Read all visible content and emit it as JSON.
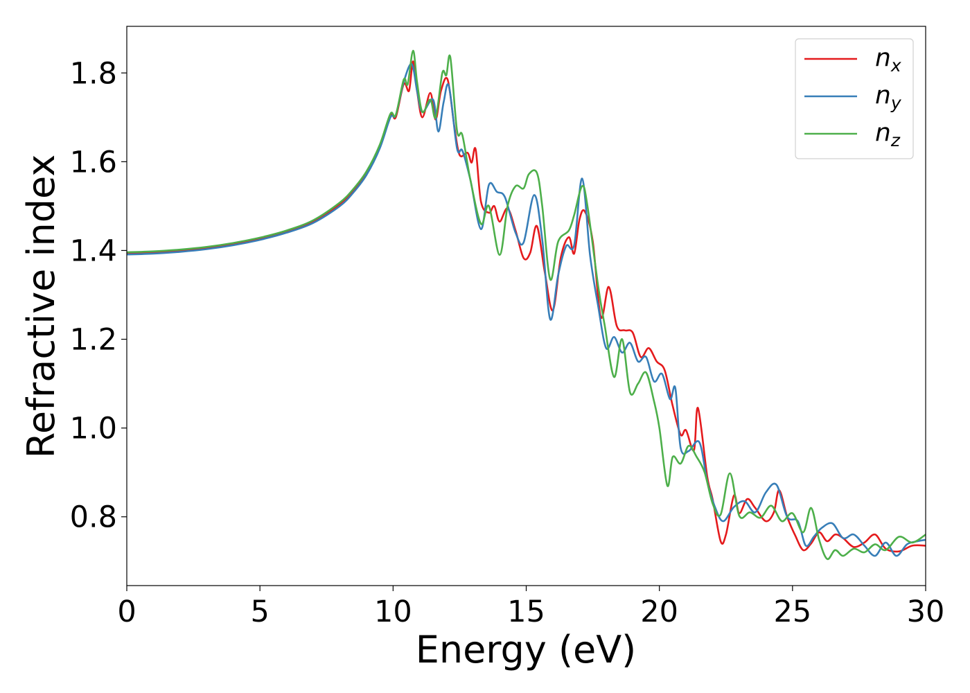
{
  "chart_data": {
    "type": "line",
    "xlabel": "Energy (eV)",
    "ylabel": "Refractive index",
    "xlim": [
      0,
      30
    ],
    "ylim": [
      0.645,
      1.905
    ],
    "xticks": [
      0,
      5,
      10,
      15,
      20,
      25,
      30
    ],
    "xtick_labels": [
      "0",
      "5",
      "10",
      "15",
      "20",
      "25",
      "30"
    ],
    "yticks": [
      0.8,
      1.0,
      1.2,
      1.4,
      1.6,
      1.8
    ],
    "ytick_labels": [
      "0.8",
      "1.0",
      "1.2",
      "1.4",
      "1.6",
      "1.8"
    ],
    "grid": false,
    "legend_position": "top-right",
    "series": [
      {
        "name": "n_x",
        "label_base": "n",
        "label_sub": "x",
        "color": "#e41a1c",
        "points": [
          [
            0,
            1.393
          ],
          [
            1,
            1.395
          ],
          [
            2,
            1.399
          ],
          [
            3,
            1.405
          ],
          [
            4,
            1.414
          ],
          [
            5,
            1.426
          ],
          [
            6,
            1.442
          ],
          [
            7,
            1.465
          ],
          [
            8,
            1.505
          ],
          [
            8.5,
            1.535
          ],
          [
            9,
            1.575
          ],
          [
            9.5,
            1.635
          ],
          [
            9.9,
            1.705
          ],
          [
            10.1,
            1.7
          ],
          [
            10.4,
            1.775
          ],
          [
            10.6,
            1.76
          ],
          [
            10.75,
            1.826
          ],
          [
            10.9,
            1.76
          ],
          [
            11.1,
            1.7
          ],
          [
            11.4,
            1.755
          ],
          [
            11.6,
            1.695
          ],
          [
            11.8,
            1.76
          ],
          [
            12.05,
            1.785
          ],
          [
            12.3,
            1.68
          ],
          [
            12.5,
            1.615
          ],
          [
            12.8,
            1.62
          ],
          [
            12.95,
            1.598
          ],
          [
            13.1,
            1.628
          ],
          [
            13.3,
            1.51
          ],
          [
            13.6,
            1.485
          ],
          [
            13.8,
            1.5
          ],
          [
            14.0,
            1.465
          ],
          [
            14.3,
            1.495
          ],
          [
            14.6,
            1.445
          ],
          [
            14.9,
            1.383
          ],
          [
            15.15,
            1.395
          ],
          [
            15.4,
            1.455
          ],
          [
            15.7,
            1.35
          ],
          [
            16.0,
            1.265
          ],
          [
            16.3,
            1.385
          ],
          [
            16.6,
            1.43
          ],
          [
            16.8,
            1.393
          ],
          [
            17.0,
            1.47
          ],
          [
            17.2,
            1.488
          ],
          [
            17.5,
            1.42
          ],
          [
            17.8,
            1.25
          ],
          [
            18.1,
            1.318
          ],
          [
            18.4,
            1.23
          ],
          [
            18.7,
            1.22
          ],
          [
            19.0,
            1.215
          ],
          [
            19.3,
            1.16
          ],
          [
            19.6,
            1.18
          ],
          [
            19.9,
            1.15
          ],
          [
            20.2,
            1.13
          ],
          [
            20.5,
            1.05
          ],
          [
            20.8,
            0.985
          ],
          [
            21.0,
            0.995
          ],
          [
            21.3,
            0.95
          ],
          [
            21.45,
            1.045
          ],
          [
            21.8,
            0.89
          ],
          [
            22.0,
            0.84
          ],
          [
            22.3,
            0.745
          ],
          [
            22.5,
            0.76
          ],
          [
            22.8,
            0.848
          ],
          [
            23.0,
            0.808
          ],
          [
            23.3,
            0.84
          ],
          [
            23.6,
            0.82
          ],
          [
            24.0,
            0.79
          ],
          [
            24.3,
            0.81
          ],
          [
            24.5,
            0.86
          ],
          [
            24.8,
            0.8
          ],
          [
            25.1,
            0.758
          ],
          [
            25.4,
            0.725
          ],
          [
            25.7,
            0.74
          ],
          [
            26.0,
            0.765
          ],
          [
            26.3,
            0.745
          ],
          [
            26.6,
            0.76
          ],
          [
            26.9,
            0.752
          ],
          [
            27.3,
            0.732
          ],
          [
            27.7,
            0.742
          ],
          [
            28.1,
            0.76
          ],
          [
            28.5,
            0.728
          ],
          [
            29.0,
            0.722
          ],
          [
            29.5,
            0.735
          ],
          [
            30,
            0.735
          ]
        ]
      },
      {
        "name": "n_y",
        "label_base": "n",
        "label_sub": "y",
        "color": "#377eb8",
        "points": [
          [
            0,
            1.391
          ],
          [
            1,
            1.393
          ],
          [
            2,
            1.397
          ],
          [
            3,
            1.403
          ],
          [
            4,
            1.412
          ],
          [
            5,
            1.424
          ],
          [
            6,
            1.44
          ],
          [
            7,
            1.462
          ],
          [
            8,
            1.5
          ],
          [
            8.5,
            1.53
          ],
          [
            9,
            1.57
          ],
          [
            9.5,
            1.63
          ],
          [
            9.9,
            1.7
          ],
          [
            10.1,
            1.705
          ],
          [
            10.4,
            1.78
          ],
          [
            10.7,
            1.82
          ],
          [
            10.9,
            1.76
          ],
          [
            11.1,
            1.712
          ],
          [
            11.5,
            1.74
          ],
          [
            11.7,
            1.668
          ],
          [
            11.9,
            1.735
          ],
          [
            12.1,
            1.77
          ],
          [
            12.4,
            1.63
          ],
          [
            12.6,
            1.625
          ],
          [
            12.9,
            1.56
          ],
          [
            13.3,
            1.448
          ],
          [
            13.6,
            1.548
          ],
          [
            13.9,
            1.532
          ],
          [
            14.2,
            1.52
          ],
          [
            14.6,
            1.44
          ],
          [
            14.9,
            1.418
          ],
          [
            15.3,
            1.525
          ],
          [
            15.6,
            1.425
          ],
          [
            15.9,
            1.245
          ],
          [
            16.2,
            1.345
          ],
          [
            16.5,
            1.41
          ],
          [
            16.8,
            1.412
          ],
          [
            17.1,
            1.562
          ],
          [
            17.4,
            1.388
          ],
          [
            17.7,
            1.275
          ],
          [
            18.0,
            1.18
          ],
          [
            18.3,
            1.205
          ],
          [
            18.6,
            1.17
          ],
          [
            18.9,
            1.192
          ],
          [
            19.2,
            1.15
          ],
          [
            19.5,
            1.16
          ],
          [
            19.8,
            1.105
          ],
          [
            20.1,
            1.122
          ],
          [
            20.4,
            1.065
          ],
          [
            20.6,
            1.09
          ],
          [
            20.8,
            0.955
          ],
          [
            21.1,
            0.948
          ],
          [
            21.5,
            0.968
          ],
          [
            21.8,
            0.88
          ],
          [
            22.1,
            0.82
          ],
          [
            22.4,
            0.79
          ],
          [
            22.8,
            0.822
          ],
          [
            23.2,
            0.835
          ],
          [
            23.6,
            0.81
          ],
          [
            24.0,
            0.855
          ],
          [
            24.4,
            0.872
          ],
          [
            24.8,
            0.8
          ],
          [
            25.2,
            0.79
          ],
          [
            25.5,
            0.735
          ],
          [
            25.8,
            0.755
          ],
          [
            26.1,
            0.775
          ],
          [
            26.5,
            0.785
          ],
          [
            26.9,
            0.752
          ],
          [
            27.3,
            0.76
          ],
          [
            27.7,
            0.735
          ],
          [
            28.1,
            0.712
          ],
          [
            28.5,
            0.742
          ],
          [
            28.9,
            0.712
          ],
          [
            29.3,
            0.738
          ],
          [
            29.7,
            0.745
          ],
          [
            30,
            0.748
          ]
        ]
      },
      {
        "name": "n_z",
        "label_base": "n",
        "label_sub": "z",
        "color": "#4daf4a",
        "points": [
          [
            0,
            1.396
          ],
          [
            1,
            1.398
          ],
          [
            2,
            1.402
          ],
          [
            3,
            1.408
          ],
          [
            4,
            1.417
          ],
          [
            5,
            1.429
          ],
          [
            6,
            1.445
          ],
          [
            7,
            1.468
          ],
          [
            8,
            1.508
          ],
          [
            8.5,
            1.538
          ],
          [
            9,
            1.578
          ],
          [
            9.5,
            1.638
          ],
          [
            9.9,
            1.708
          ],
          [
            10.1,
            1.705
          ],
          [
            10.4,
            1.785
          ],
          [
            10.55,
            1.775
          ],
          [
            10.75,
            1.85
          ],
          [
            10.9,
            1.78
          ],
          [
            11.1,
            1.712
          ],
          [
            11.4,
            1.74
          ],
          [
            11.6,
            1.7
          ],
          [
            11.85,
            1.8
          ],
          [
            12.0,
            1.795
          ],
          [
            12.15,
            1.835
          ],
          [
            12.4,
            1.67
          ],
          [
            12.6,
            1.66
          ],
          [
            12.9,
            1.56
          ],
          [
            13.3,
            1.46
          ],
          [
            13.6,
            1.5
          ],
          [
            14.0,
            1.39
          ],
          [
            14.3,
            1.5
          ],
          [
            14.6,
            1.545
          ],
          [
            14.9,
            1.54
          ],
          [
            15.1,
            1.572
          ],
          [
            15.4,
            1.575
          ],
          [
            15.6,
            1.5
          ],
          [
            15.9,
            1.335
          ],
          [
            16.2,
            1.42
          ],
          [
            16.6,
            1.445
          ],
          [
            16.8,
            1.48
          ],
          [
            17.1,
            1.545
          ],
          [
            17.3,
            1.5
          ],
          [
            17.7,
            1.32
          ],
          [
            17.95,
            1.23
          ],
          [
            18.3,
            1.115
          ],
          [
            18.6,
            1.2
          ],
          [
            18.9,
            1.08
          ],
          [
            19.2,
            1.1
          ],
          [
            19.5,
            1.125
          ],
          [
            19.8,
            1.06
          ],
          [
            20.0,
            1.0
          ],
          [
            20.3,
            0.87
          ],
          [
            20.5,
            0.935
          ],
          [
            20.8,
            0.92
          ],
          [
            21.1,
            0.96
          ],
          [
            21.4,
            0.935
          ],
          [
            21.7,
            0.9
          ],
          [
            22.0,
            0.83
          ],
          [
            22.3,
            0.805
          ],
          [
            22.65,
            0.898
          ],
          [
            23.0,
            0.802
          ],
          [
            23.4,
            0.81
          ],
          [
            23.8,
            0.798
          ],
          [
            24.2,
            0.825
          ],
          [
            24.6,
            0.79
          ],
          [
            25.0,
            0.808
          ],
          [
            25.4,
            0.765
          ],
          [
            25.7,
            0.82
          ],
          [
            26.0,
            0.748
          ],
          [
            26.3,
            0.705
          ],
          [
            26.6,
            0.725
          ],
          [
            26.9,
            0.712
          ],
          [
            27.3,
            0.728
          ],
          [
            27.7,
            0.72
          ],
          [
            28.1,
            0.738
          ],
          [
            28.5,
            0.725
          ],
          [
            29.0,
            0.755
          ],
          [
            29.5,
            0.742
          ],
          [
            30,
            0.76
          ]
        ]
      }
    ]
  }
}
